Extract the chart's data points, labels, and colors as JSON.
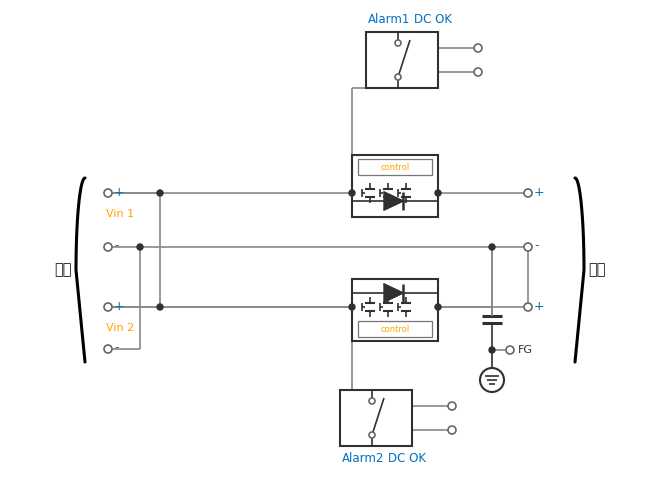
{
  "bg_color": "#ffffff",
  "lc": "#888888",
  "dc": "#303030",
  "blue": "#0070C0",
  "orange": "#FFA500",
  "black": "#1a1a1a",
  "label_yin": "输入",
  "label_yout": "输出",
  "label_vin1": "Vin 1",
  "label_vin2": "Vin 2",
  "label_alarm1": "Alarm1",
  "label_alarm2": "Alarm2",
  "label_dcok": "DC OK",
  "label_control": "control",
  "label_fg": "FG",
  "figw": 6.6,
  "figh": 4.97,
  "dpi": 100
}
